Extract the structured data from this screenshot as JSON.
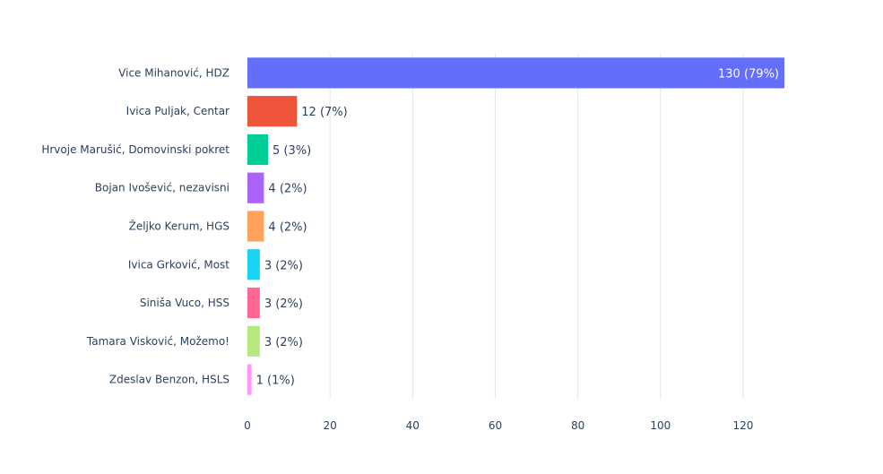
{
  "chart_data": {
    "type": "bar",
    "orientation": "horizontal",
    "title": "",
    "xlabel": "",
    "ylabel": "",
    "xlim": [
      0,
      130
    ],
    "x_ticks": [
      0,
      20,
      40,
      60,
      80,
      100,
      120
    ],
    "x_tick_labels": [
      "0",
      "20",
      "40",
      "60",
      "80",
      "100",
      "120"
    ],
    "grid": "vertical",
    "legend": "none",
    "categories": [
      "Vice Mihanović, HDZ",
      "Ivica Puljak, Centar",
      "Hrvoje Marušić, Domovinski pokret",
      "Bojan Ivošević, nezavisni",
      "Željko Kerum, HGS",
      "Ivica Grković, Most",
      "Siniša Vuco, HSS",
      "Tamara Visković, Možemo!",
      "Zdeslav Benzon, HSLS"
    ],
    "values": [
      130,
      12,
      5,
      4,
      4,
      3,
      3,
      3,
      1
    ],
    "data_labels": [
      "130 (79%)",
      "12 (7%)",
      "5 (3%)",
      "4 (2%)",
      "4 (2%)",
      "3 (2%)",
      "3 (2%)",
      "3 (2%)",
      "1 (1%)"
    ],
    "colors": [
      "#636efa",
      "#ef553b",
      "#00cc96",
      "#ab63fa",
      "#ffa15a",
      "#19d3f3",
      "#ff6692",
      "#b6e880",
      "#ff97ff"
    ]
  }
}
